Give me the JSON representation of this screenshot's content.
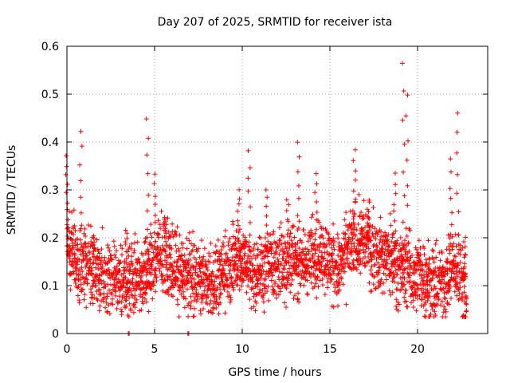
{
  "chart_data": {
    "type": "scatter",
    "title": "Day 207 of 2025, SRMTID for receiver ista",
    "xlabel": "GPS time / hours",
    "ylabel": "SRMTID / TECUs",
    "xlim": [
      0,
      24
    ],
    "ylim": [
      0,
      0.6
    ],
    "xticks": [
      0,
      5,
      10,
      15,
      20
    ],
    "xtick_labels": [
      "0",
      "5",
      "10",
      "15",
      "20"
    ],
    "yticks": [
      0,
      0.1,
      0.2,
      0.3,
      0.4,
      0.5,
      0.6
    ],
    "ytick_labels": [
      "0",
      "0.1",
      "0.2",
      "0.3",
      "0.4",
      "0.5",
      "0.6"
    ],
    "grid": true,
    "marker": "+",
    "color": "#ff0000",
    "series": [
      {
        "name": "SRMTID",
        "approx_profile": {
          "x": [
            0,
            0.2,
            0.5,
            1,
            1.5,
            2,
            2.5,
            3,
            3.5,
            4,
            4.5,
            5,
            5.5,
            6,
            6.5,
            7,
            7.5,
            8,
            8.5,
            9,
            9.5,
            10,
            10.5,
            11,
            11.5,
            12,
            12.5,
            13,
            13.5,
            14,
            14.5,
            15,
            15.5,
            16,
            16.5,
            17,
            17.5,
            18,
            18.5,
            19,
            19.5,
            20,
            20.5,
            21,
            21.5,
            22,
            22.5,
            22.8
          ],
          "median": [
            0.2,
            0.17,
            0.15,
            0.15,
            0.13,
            0.12,
            0.12,
            0.11,
            0.12,
            0.11,
            0.13,
            0.15,
            0.16,
            0.15,
            0.13,
            0.12,
            0.12,
            0.11,
            0.11,
            0.13,
            0.15,
            0.16,
            0.13,
            0.13,
            0.14,
            0.14,
            0.15,
            0.16,
            0.14,
            0.16,
            0.17,
            0.15,
            0.13,
            0.17,
            0.2,
            0.19,
            0.17,
            0.16,
            0.16,
            0.14,
            0.13,
            0.12,
            0.12,
            0.1,
            0.11,
            0.14,
            0.12,
            0.07
          ]
        },
        "peaks": [
          {
            "x": 0.0,
            "y": 0.37
          },
          {
            "x": 0.8,
            "y": 0.42
          },
          {
            "x": 1.5,
            "y": 0.2
          },
          {
            "x": 3.4,
            "y": 0.22
          },
          {
            "x": 4.6,
            "y": 0.45
          },
          {
            "x": 5.0,
            "y": 0.33
          },
          {
            "x": 5.6,
            "y": 0.24
          },
          {
            "x": 9.8,
            "y": 0.3
          },
          {
            "x": 10.4,
            "y": 0.38
          },
          {
            "x": 11.4,
            "y": 0.3
          },
          {
            "x": 12.6,
            "y": 0.28
          },
          {
            "x": 13.2,
            "y": 0.4
          },
          {
            "x": 14.2,
            "y": 0.33
          },
          {
            "x": 16.4,
            "y": 0.38
          },
          {
            "x": 17.2,
            "y": 0.28
          },
          {
            "x": 18.7,
            "y": 0.33
          },
          {
            "x": 19.2,
            "y": 0.56
          },
          {
            "x": 19.4,
            "y": 0.5
          },
          {
            "x": 21.9,
            "y": 0.36
          },
          {
            "x": 22.3,
            "y": 0.46
          },
          {
            "x": 22.7,
            "y": 0.2
          }
        ],
        "extras": [
          {
            "x": 3.5,
            "y": 0.0
          },
          {
            "x": 6.9,
            "y": 0.0
          }
        ]
      }
    ]
  }
}
